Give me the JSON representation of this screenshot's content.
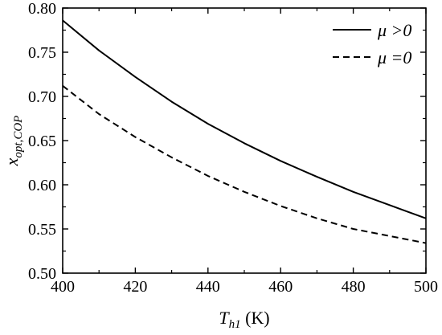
{
  "chart_data": {
    "type": "line",
    "title": "",
    "xlabel": {
      "base": "T",
      "sub": "h1",
      "unit": " (K)"
    },
    "ylabel": {
      "base": "x",
      "sub": "opt,COP"
    },
    "xlim": [
      400,
      500
    ],
    "ylim": [
      0.5,
      0.8
    ],
    "xticks": [
      400,
      420,
      440,
      460,
      480,
      500
    ],
    "yticks": [
      0.5,
      0.55,
      0.6,
      0.65,
      0.7,
      0.75,
      0.8
    ],
    "xtick_labels": [
      "400",
      "420",
      "440",
      "460",
      "480",
      "500"
    ],
    "ytick_labels": [
      "0.50",
      "0.55",
      "0.60",
      "0.65",
      "0.70",
      "0.75",
      "0.80"
    ],
    "grid": false,
    "legend_position": "top-right",
    "x": [
      400,
      410,
      420,
      430,
      440,
      450,
      460,
      470,
      480,
      490,
      500
    ],
    "series": [
      {
        "name": "μ >0",
        "style": "solid",
        "color": "#000000",
        "values": [
          0.786,
          0.752,
          0.722,
          0.694,
          0.669,
          0.647,
          0.627,
          0.609,
          0.592,
          0.577,
          0.562
        ]
      },
      {
        "name": "μ =0",
        "style": "dashed",
        "color": "#000000",
        "values": [
          0.712,
          0.68,
          0.654,
          0.631,
          0.61,
          0.592,
          0.576,
          0.562,
          0.55,
          0.542,
          0.534
        ]
      }
    ]
  }
}
